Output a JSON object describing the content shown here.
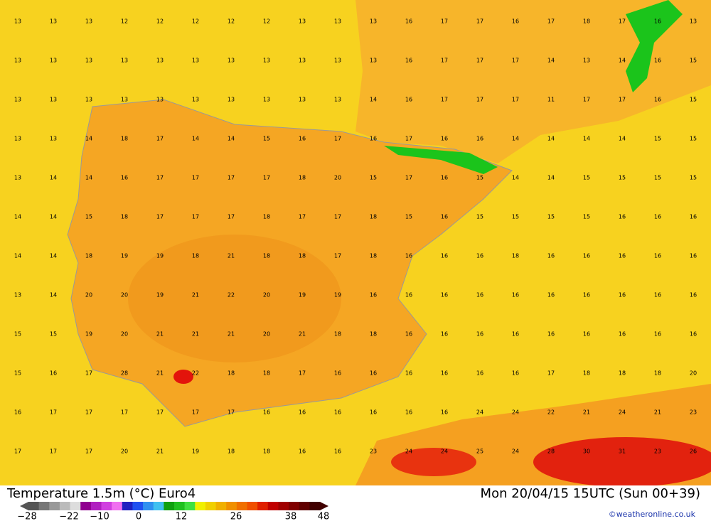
{
  "header": {
    "title": "Temperature 1.5m (°C) Euro4",
    "valid": "Mon 20/04/15 15UTC (Sun 00+39)",
    "credit": "©weatheronline.co.uk"
  },
  "legend": {
    "labels": [
      "−28",
      "−22",
      "−10",
      "0",
      "12",
      "26",
      "38",
      "48"
    ]
  },
  "grid": {
    "rows": [
      [
        13,
        13,
        13,
        12,
        12,
        12,
        12,
        12,
        13,
        13,
        13,
        16,
        17,
        17,
        16,
        17,
        18,
        17,
        16,
        13
      ],
      [
        13,
        13,
        13,
        13,
        13,
        13,
        13,
        13,
        13,
        13,
        13,
        16,
        17,
        17,
        17,
        14,
        13,
        14,
        16,
        15
      ],
      [
        13,
        13,
        13,
        13,
        13,
        13,
        13,
        13,
        13,
        13,
        14,
        16,
        17,
        17,
        17,
        11,
        17,
        17,
        16,
        15
      ],
      [
        13,
        13,
        14,
        18,
        17,
        14,
        14,
        15,
        16,
        17,
        16,
        17,
        16,
        16,
        14,
        14,
        14,
        14,
        15,
        15
      ],
      [
        13,
        14,
        14,
        16,
        17,
        17,
        17,
        17,
        18,
        20,
        15,
        17,
        16,
        15,
        14,
        14,
        15,
        15,
        15,
        15
      ],
      [
        14,
        14,
        15,
        18,
        17,
        17,
        17,
        18,
        17,
        17,
        18,
        15,
        16,
        15,
        15,
        15,
        15,
        16,
        16,
        16
      ],
      [
        14,
        14,
        18,
        19,
        19,
        18,
        21,
        18,
        18,
        17,
        18,
        16,
        16,
        16,
        18,
        16,
        16,
        16,
        16,
        16
      ],
      [
        13,
        14,
        20,
        20,
        19,
        21,
        22,
        20,
        19,
        19,
        16,
        16,
        16,
        16,
        16,
        16,
        16,
        16,
        16,
        16
      ],
      [
        15,
        15,
        19,
        20,
        21,
        21,
        21,
        20,
        21,
        18,
        18,
        16,
        16,
        16,
        16,
        16,
        16,
        16,
        16,
        16
      ],
      [
        15,
        16,
        17,
        28,
        21,
        22,
        18,
        18,
        17,
        16,
        16,
        16,
        16,
        16,
        16,
        17,
        18,
        18,
        18,
        20
      ],
      [
        16,
        17,
        17,
        17,
        17,
        17,
        17,
        16,
        16,
        16,
        16,
        16,
        16,
        24,
        24,
        22,
        21,
        24,
        21,
        23
      ],
      [
        17,
        17,
        17,
        20,
        21,
        19,
        18,
        18,
        16,
        16,
        23,
        24,
        24,
        25,
        24,
        28,
        30,
        31,
        23,
        26
      ]
    ]
  }
}
